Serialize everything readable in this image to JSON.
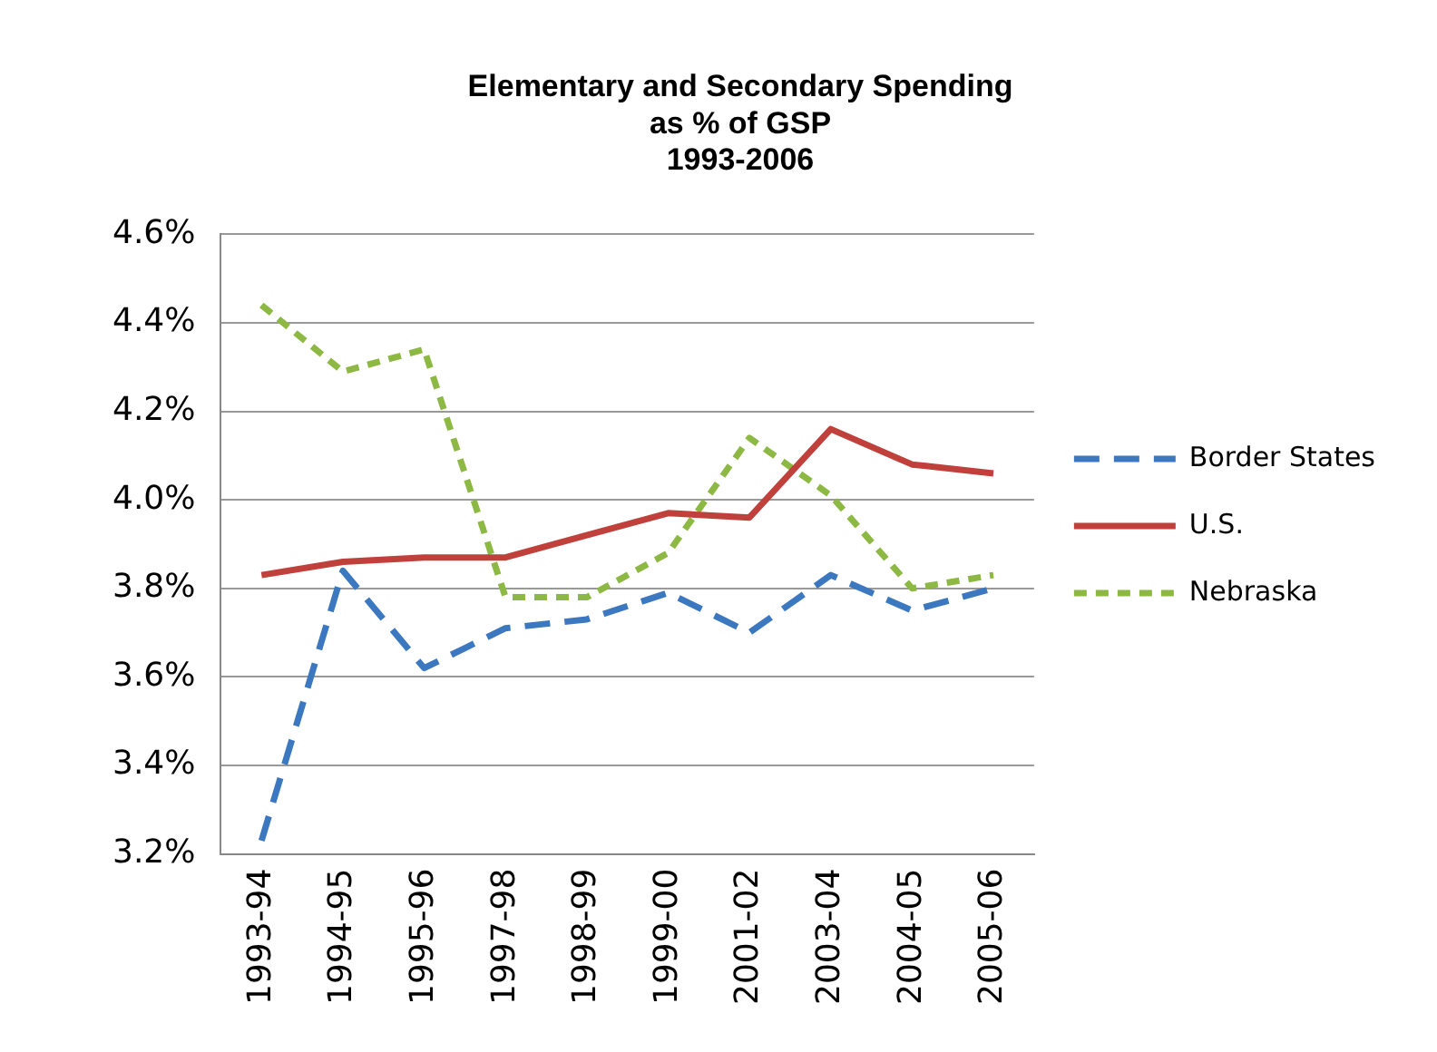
{
  "chart_data": {
    "type": "line",
    "title": [
      "Elementary and Secondary Spending",
      "as % of GSP",
      "1993-2006"
    ],
    "categories": [
      "1993-94",
      "1994-95",
      "1995-96",
      "1997-98",
      "1998-99",
      "1999-00",
      "2001-02",
      "2003-04",
      "2004-05",
      "2005-06"
    ],
    "series": [
      {
        "name": "Border States",
        "color": "#3c78c0",
        "line_style": "dashed",
        "values": [
          3.23,
          3.84,
          3.62,
          3.71,
          3.73,
          3.79,
          3.7,
          3.83,
          3.75,
          3.8
        ]
      },
      {
        "name": "U.S.",
        "color": "#c0403c",
        "line_style": "solid",
        "values": [
          3.83,
          3.86,
          3.87,
          3.87,
          3.92,
          3.97,
          3.96,
          4.16,
          4.08,
          4.06
        ]
      },
      {
        "name": "Nebraska",
        "color": "#8cb843",
        "line_style": "dashed",
        "values": [
          4.44,
          4.29,
          4.34,
          3.78,
          3.78,
          3.88,
          4.14,
          4.01,
          3.8,
          3.83
        ]
      }
    ],
    "ylim": [
      3.2,
      4.6
    ],
    "yticks": [
      {
        "value": 3.2,
        "label": "3.2%"
      },
      {
        "value": 3.4,
        "label": "3.4%"
      },
      {
        "value": 3.6,
        "label": "3.6%"
      },
      {
        "value": 3.8,
        "label": "3.8%"
      },
      {
        "value": 4.0,
        "label": "4.0%"
      },
      {
        "value": 4.2,
        "label": "4.2%"
      },
      {
        "value": 4.4,
        "label": "4.4%"
      },
      {
        "value": 4.6,
        "label": "4.6%"
      }
    ],
    "grid": "y",
    "legend": "right",
    "marker": "none"
  }
}
